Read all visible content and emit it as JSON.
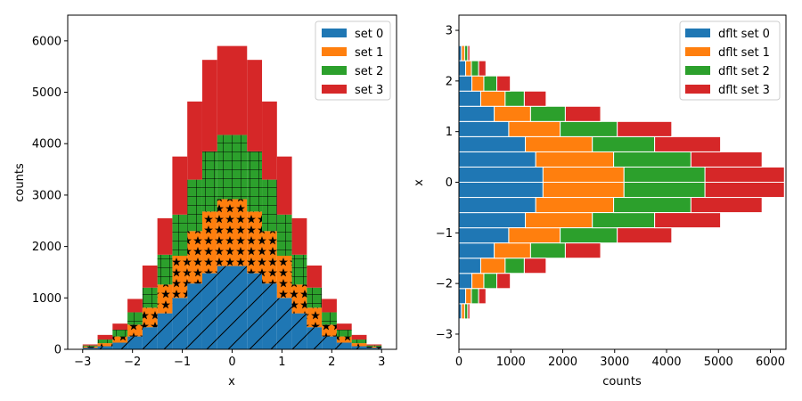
{
  "chart_data": [
    {
      "type": "bar",
      "histtype": "stacked bar with hatching",
      "xlabel": "x",
      "ylabel": "counts",
      "xlim": [
        -3.3,
        3.3
      ],
      "ylim": [
        0,
        6500
      ],
      "xticks": [
        "−3",
        "−2",
        "−1",
        "0",
        "1",
        "2",
        "3"
      ],
      "yticks": [
        "0",
        "1000",
        "2000",
        "3000",
        "4000",
        "5000",
        "6000"
      ],
      "bin_edges": [
        -3.0,
        -2.7,
        -2.4,
        -2.1,
        -1.8,
        -1.5,
        -1.2,
        -0.9,
        -0.6,
        -0.3,
        0.0,
        0.3,
        0.6,
        0.9,
        1.2,
        1.5,
        1.8,
        2.1,
        2.4,
        2.7,
        3.0
      ],
      "legend_position": "top-right",
      "series": [
        {
          "name": "set 0",
          "color": "#1f77b4",
          "hatch": "diagonal",
          "values": [
            30,
            60,
            130,
            250,
            430,
            700,
            1000,
            1280,
            1480,
            1620,
            1620,
            1480,
            1280,
            1000,
            700,
            430,
            250,
            130,
            60,
            30
          ]
        },
        {
          "name": "set 1",
          "color": "#ff7f0e",
          "hatch": "stars",
          "values": [
            25,
            60,
            120,
            230,
            380,
            560,
            820,
            1020,
            1200,
            1300,
            1300,
            1200,
            1020,
            820,
            560,
            380,
            230,
            120,
            60,
            25
          ]
        },
        {
          "name": "set 2",
          "color": "#2ca02c",
          "hatch": "grid",
          "values": [
            20,
            70,
            130,
            240,
            390,
            580,
            800,
            1000,
            1170,
            1250,
            1250,
            1170,
            1000,
            800,
            580,
            390,
            240,
            130,
            70,
            20
          ]
        },
        {
          "name": "set 3",
          "color": "#d62728",
          "hatch": "none",
          "values": [
            20,
            90,
            120,
            260,
            430,
            710,
            1130,
            1520,
            1780,
            1730,
            1730,
            1780,
            1520,
            1130,
            710,
            430,
            260,
            120,
            90,
            20
          ]
        }
      ]
    },
    {
      "type": "bar",
      "orientation": "horizontal",
      "histtype": "stepfilled stacked",
      "xlabel": "counts",
      "ylabel": "x",
      "xlim": [
        0,
        6300
      ],
      "ylim": [
        -3.3,
        3.3
      ],
      "xticks": [
        "0",
        "1000",
        "2000",
        "3000",
        "4000",
        "5000",
        "6000"
      ],
      "yticks": [
        "−3",
        "−2",
        "−1",
        "0",
        "1",
        "2",
        "3"
      ],
      "bin_edges": [
        -3.0,
        -2.7,
        -2.4,
        -2.1,
        -1.8,
        -1.5,
        -1.2,
        -0.9,
        -0.6,
        -0.3,
        0.0,
        0.3,
        0.6,
        0.9,
        1.2,
        1.5,
        1.8,
        2.1,
        2.4,
        2.7,
        3.0
      ],
      "legend_position": "top-right",
      "series": [
        {
          "name": "dflt set 0",
          "color": "#1f77b4",
          "values": [
            20,
            50,
            130,
            250,
            420,
            680,
            960,
            1280,
            1480,
            1620,
            1620,
            1480,
            1280,
            960,
            680,
            420,
            250,
            130,
            50,
            20
          ]
        },
        {
          "name": "dflt set 1",
          "color": "#ff7f0e",
          "values": [
            15,
            60,
            110,
            230,
            470,
            700,
            990,
            1290,
            1500,
            1560,
            1560,
            1500,
            1290,
            990,
            700,
            470,
            230,
            110,
            60,
            15
          ]
        },
        {
          "name": "dflt set 2",
          "color": "#2ca02c",
          "values": [
            10,
            60,
            140,
            250,
            370,
            670,
            1100,
            1200,
            1490,
            1560,
            1560,
            1490,
            1200,
            1100,
            670,
            370,
            250,
            140,
            60,
            10
          ]
        },
        {
          "name": "dflt set 3",
          "color": "#d62728",
          "values": [
            5,
            40,
            140,
            260,
            420,
            680,
            1050,
            1270,
            1370,
            1530,
            1530,
            1370,
            1270,
            1050,
            680,
            420,
            260,
            140,
            40,
            5
          ]
        }
      ]
    }
  ]
}
